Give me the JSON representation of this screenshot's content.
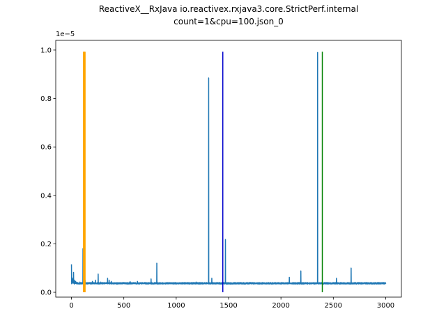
{
  "chart_data": {
    "type": "line",
    "title": "ReactiveX__RxJava io.reactivex.rxjava3.core.StrictPerf.internal",
    "subtitle": "count=1&cpu=100.json_0",
    "xlabel": "",
    "ylabel": "",
    "y_offset_label": "1e−5",
    "xlim": [
      -150,
      3150
    ],
    "ylim": [
      -0.02,
      1.04
    ],
    "x_ticks": [
      0,
      500,
      1000,
      1500,
      2000,
      2500,
      3000
    ],
    "x_tick_labels": [
      "0",
      "500",
      "1000",
      "1500",
      "2000",
      "2500",
      "3000"
    ],
    "y_ticks": [
      0.0,
      0.2,
      0.4,
      0.6,
      0.8,
      1.0
    ],
    "y_tick_labels": [
      "0.0",
      "0.2",
      "0.4",
      "0.6",
      "0.8",
      "1.0"
    ],
    "grid": false,
    "series": [
      {
        "color": "#1f77b4",
        "baseline": 0.037,
        "x_max": 3000,
        "spikes": [
          [
            0,
            0.115
          ],
          [
            5,
            0.06
          ],
          [
            12,
            0.055
          ],
          [
            20,
            0.082
          ],
          [
            28,
            0.05
          ],
          [
            40,
            0.045
          ],
          [
            60,
            0.04
          ],
          [
            80,
            0.042
          ],
          [
            110,
            0.18
          ],
          [
            130,
            0.05
          ],
          [
            170,
            0.04
          ],
          [
            200,
            0.045
          ],
          [
            230,
            0.05
          ],
          [
            255,
            0.075
          ],
          [
            280,
            0.042
          ],
          [
            300,
            0.04
          ],
          [
            345,
            0.058
          ],
          [
            360,
            0.05
          ],
          [
            380,
            0.045
          ],
          [
            560,
            0.044
          ],
          [
            630,
            0.045
          ],
          [
            700,
            0.04
          ],
          [
            760,
            0.055
          ],
          [
            815,
            0.12
          ],
          [
            1190,
            0.042
          ],
          [
            1310,
            0.885
          ],
          [
            1340,
            0.058
          ],
          [
            1470,
            0.218
          ],
          [
            2080,
            0.062
          ],
          [
            2190,
            0.088
          ],
          [
            2350,
            0.99
          ],
          [
            2530,
            0.058
          ],
          [
            2670,
            0.1
          ],
          [
            2750,
            0.04
          ],
          [
            2870,
            0.038
          ],
          [
            2980,
            0.04
          ]
        ]
      }
    ],
    "vertical_lines": [
      {
        "x": 115,
        "color": "#ffa500"
      },
      {
        "x": 120,
        "color": "#ffa500"
      },
      {
        "x": 125,
        "color": "#ffa500"
      },
      {
        "x": 130,
        "color": "#ffa500"
      },
      {
        "x": 1445,
        "color": "#0000cc"
      },
      {
        "x": 2395,
        "color": "#008000"
      }
    ],
    "vertical_line_top": 0.993
  }
}
